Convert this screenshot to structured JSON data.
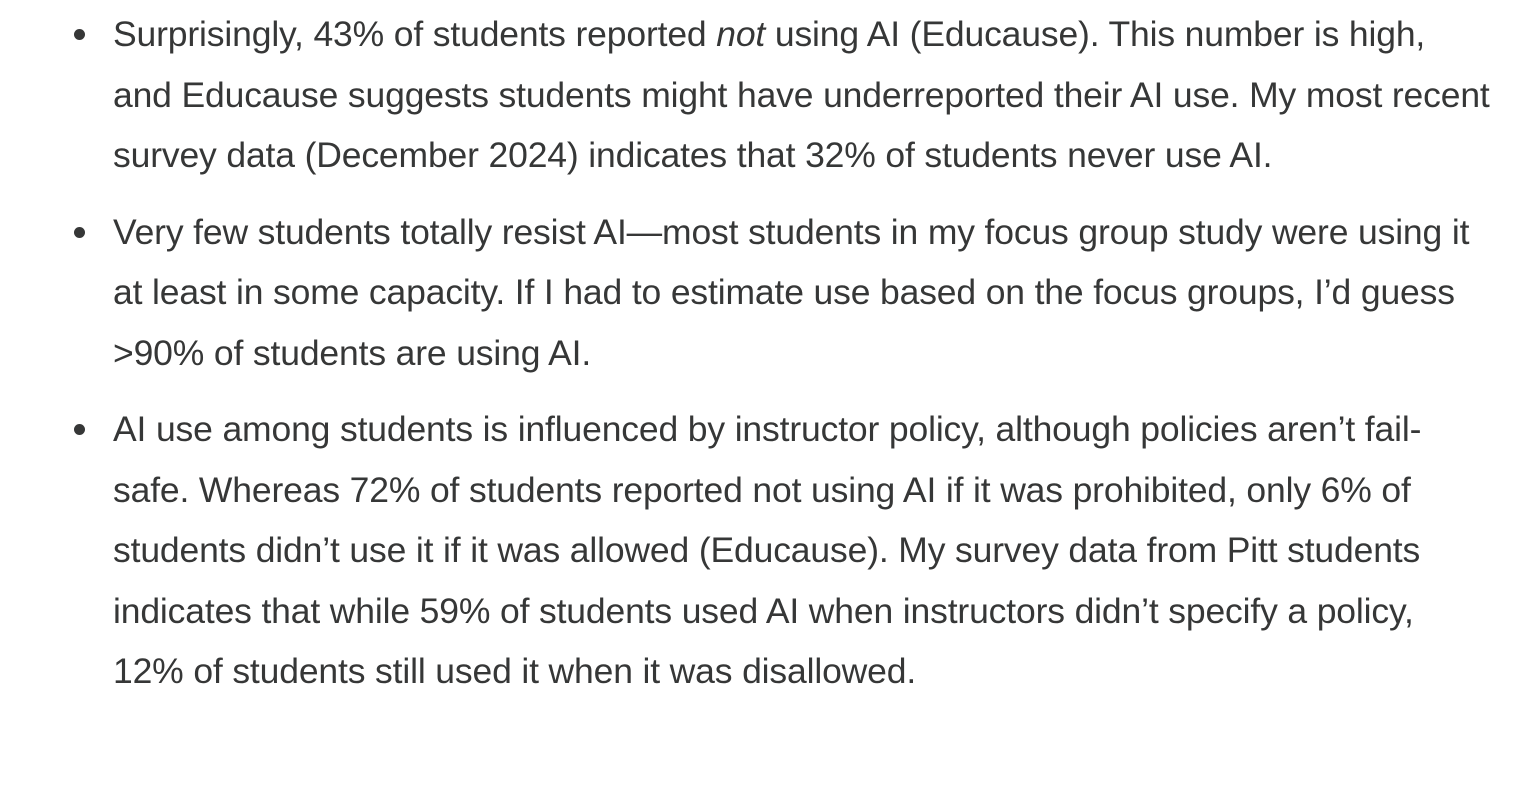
{
  "bullets": [
    {
      "pre_italic": "Surprisingly, 43% of students reported ",
      "italic": "not",
      "post_italic": " using AI (Educause). This number is high, and Educause suggests students might have underreported their AI use. My most recent survey data (December 2024) indicates that 32% of students never use AI."
    },
    {
      "text": "Very few students totally resist AI—most students in my focus group study were using it at least in some capacity. If I had to estimate use based on the focus groups, I’d guess >90% of students are using AI."
    },
    {
      "text": "AI use among students is influenced by instructor policy, although policies aren’t fail-safe. Whereas 72% of students reported not using AI if it was prohibited, only 6% of students didn’t use it if it was allowed (Educause). My survey data from Pitt students indicates that while 59% of students used AI when instructors didn’t specify a policy, 12% of students still used it when it was disallowed."
    }
  ]
}
